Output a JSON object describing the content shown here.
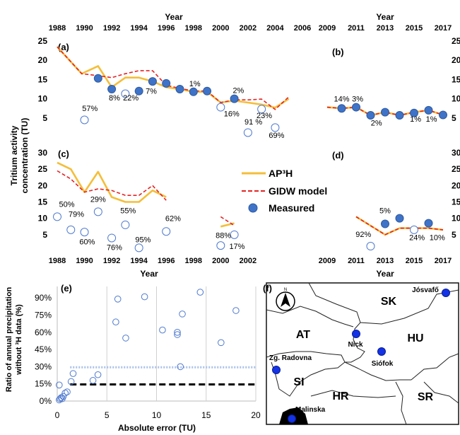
{
  "colors": {
    "ap3h": "#F4BE3A",
    "gidw": "#E52222",
    "measured_fill": "#3E73C8",
    "measured_stroke": "#2F5A9E",
    "open_marker": "#4F7ACF",
    "dotted_line": "#A9C1EA",
    "dashed_line": "#000000",
    "map_marker": "#1432E6"
  },
  "top_axis": {
    "title": "Year",
    "left_ticks": [
      "1988",
      "1990",
      "1992",
      "1994",
      "1996",
      "1998",
      "2000",
      "2002",
      "2004",
      "2006"
    ],
    "right_ticks": [
      "2009",
      "2011",
      "2013",
      "2015",
      "2017"
    ]
  },
  "bottom_axis": {
    "title": "Year",
    "left_ticks": [
      "1988",
      "1990",
      "1992",
      "1994",
      "1996",
      "1998",
      "2000",
      "2002"
    ],
    "right_ticks": [
      "2009",
      "2011",
      "2013",
      "2015",
      "2017"
    ]
  },
  "y_axis_title_lines": [
    "Tritium activity",
    "concentration (TU)"
  ],
  "legend": {
    "ap3h": "AP³H",
    "gidw": "GIDW model",
    "measured": "Measured"
  },
  "chart_data": [
    {
      "panel": "(a)",
      "type": "line",
      "xlim": [
        1988,
        2006
      ],
      "ylim": [
        0,
        25
      ],
      "yticks": [
        "5",
        "10",
        "15",
        "20",
        "25"
      ],
      "series": [
        {
          "name": "AP³H",
          "x": [
            1988,
            1989.8,
            1991,
            1992,
            1993,
            1994,
            1995,
            1996,
            1997,
            1998,
            1999,
            2000,
            2001,
            2002,
            2003,
            2004,
            2005
          ],
          "y": [
            23.5,
            16.5,
            18.5,
            13,
            15.5,
            15.5,
            14.5,
            13,
            12.5,
            11.8,
            11.8,
            9,
            9.5,
            9,
            8.5,
            7.7,
            10
          ]
        },
        {
          "name": "GIDW model",
          "x": [
            1988,
            1989.8,
            1991,
            1992,
            1993,
            1994,
            1995,
            1996,
            1997,
            1998,
            1999,
            2000,
            2001,
            2002,
            2003,
            2004,
            2005
          ],
          "y": [
            23.5,
            16.5,
            16,
            15.5,
            16.5,
            17.3,
            17.3,
            13.5,
            12.7,
            12,
            12,
            9,
            9.7,
            9.7,
            9.9,
            7.2,
            10.5
          ]
        }
      ],
      "measured_filled": [
        {
          "x": 1991,
          "y": 15.3
        },
        {
          "x": 1992,
          "y": 12.5
        },
        {
          "x": 1994,
          "y": 12
        },
        {
          "x": 1995,
          "y": 14.5
        },
        {
          "x": 1996,
          "y": 14
        },
        {
          "x": 1997,
          "y": 12.5
        },
        {
          "x": 1998,
          "y": 11.8
        },
        {
          "x": 1999,
          "y": 12
        },
        {
          "x": 2001,
          "y": 10
        }
      ],
      "measured_open": [
        {
          "x": 1990,
          "y": 4.5
        },
        {
          "x": 1993,
          "y": 11.3
        },
        {
          "x": 2000,
          "y": 7.8
        },
        {
          "x": 2003,
          "y": 7.3
        },
        {
          "x": 2002,
          "y": 1.2
        },
        {
          "x": 2004,
          "y": 2.5
        }
      ],
      "annotations": [
        {
          "text": "57%",
          "x": 1990.4,
          "y": 6.8
        },
        {
          "text": "8%",
          "x": 1992.2,
          "y": 9.6
        },
        {
          "text": "22%",
          "x": 1993.4,
          "y": 9.6
        },
        {
          "text": "7%",
          "x": 1994.9,
          "y": 11.3
        },
        {
          "text": "1%",
          "x": 1998.1,
          "y": 13.2
        },
        {
          "text": "2%",
          "x": 2001.3,
          "y": 11.5
        },
        {
          "text": "16%",
          "x": 2000.8,
          "y": 5.4
        },
        {
          "text": "91 %",
          "x": 2002.4,
          "y": 3.3
        },
        {
          "text": "23%",
          "x": 2003.2,
          "y": 5.0
        },
        {
          "text": "69%",
          "x": 2004.1,
          "y": -0.2
        }
      ]
    },
    {
      "panel": "(b)",
      "type": "line",
      "xlim": [
        2009,
        2017
      ],
      "ylim": [
        0,
        25
      ],
      "yticks": [
        "5",
        "10",
        "15",
        "20",
        "25"
      ],
      "series": [
        {
          "name": "AP³H",
          "x": [
            2009,
            2010,
            2011,
            2012,
            2013,
            2014,
            2015,
            2016,
            2017
          ],
          "y": [
            7.8,
            7.5,
            7.8,
            5.7,
            6.5,
            5.7,
            6.5,
            7,
            5.8
          ]
        },
        {
          "name": "GIDW model",
          "x": [
            2009,
            2010,
            2011,
            2012,
            2013,
            2014,
            2015,
            2016,
            2017
          ],
          "y": [
            7.8,
            7.5,
            7.8,
            5.7,
            6.5,
            5.7,
            6.5,
            7,
            5.8
          ]
        }
      ],
      "measured_filled": [
        {
          "x": 2010,
          "y": 7.5
        },
        {
          "x": 2011,
          "y": 7.8
        },
        {
          "x": 2012,
          "y": 5.7
        },
        {
          "x": 2013,
          "y": 6.5
        },
        {
          "x": 2014,
          "y": 5.7
        },
        {
          "x": 2015,
          "y": 6.3
        },
        {
          "x": 2016,
          "y": 7
        },
        {
          "x": 2017,
          "y": 5.8
        }
      ],
      "measured_open": [],
      "annotations": [
        {
          "text": "14%",
          "x": 2010,
          "y": 9.3
        },
        {
          "text": "3%",
          "x": 2011.1,
          "y": 9.3
        },
        {
          "text": "2%",
          "x": 2012.4,
          "y": 3.0
        },
        {
          "text": "1%",
          "x": 2015.1,
          "y": 4.0
        },
        {
          "text": "1%",
          "x": 2016.2,
          "y": 4.0
        }
      ]
    },
    {
      "panel": "(c)",
      "type": "line",
      "xlim": [
        1988,
        2006
      ],
      "ylim": [
        0,
        30
      ],
      "yticks": [
        "5",
        "10",
        "15",
        "20",
        "25",
        "30"
      ],
      "series": [
        {
          "name": "AP³H",
          "x": [
            1988,
            1989,
            1990,
            1991,
            1992,
            1993,
            1994,
            1995,
            1996
          ],
          "y": [
            27,
            25,
            18,
            24.2,
            16.5,
            15,
            15,
            18.5,
            16.5
          ]
        },
        {
          "name": "GIDW model",
          "x": [
            1988,
            1989,
            1990,
            1991,
            1992,
            1993,
            1994,
            1995,
            1996
          ],
          "y": [
            24.5,
            22,
            18,
            19,
            18.5,
            17,
            17,
            20,
            15.5
          ]
        },
        {
          "name": "AP³H",
          "x": [
            2000,
            2001
          ],
          "y": [
            7.5,
            8.5
          ]
        },
        {
          "name": "GIDW model",
          "x": [
            2000,
            2001
          ],
          "y": [
            10.5,
            7.8
          ]
        }
      ],
      "measured_filled": [],
      "measured_open": [
        {
          "x": 1988,
          "y": 10.5
        },
        {
          "x": 1989,
          "y": 6.5
        },
        {
          "x": 1990,
          "y": 5.8
        },
        {
          "x": 1991,
          "y": 12
        },
        {
          "x": 1992,
          "y": 4
        },
        {
          "x": 1993,
          "y": 8
        },
        {
          "x": 1994,
          "y": 1
        },
        {
          "x": 1996,
          "y": 6
        },
        {
          "x": 2000,
          "y": 1.7
        },
        {
          "x": 2001,
          "y": 5
        }
      ],
      "annotations": [
        {
          "text": "50%",
          "x": 1988.7,
          "y": 13.5
        },
        {
          "text": "79%",
          "x": 1989.4,
          "y": 10.5
        },
        {
          "text": "29%",
          "x": 1991,
          "y": 15
        },
        {
          "text": "55%",
          "x": 1993.2,
          "y": 11.5
        },
        {
          "text": "62%",
          "x": 1996.5,
          "y": 9.2
        },
        {
          "text": "60%",
          "x": 1990.2,
          "y": 2.0
        },
        {
          "text": "76%",
          "x": 1992.2,
          "y": 0.3
        },
        {
          "text": "95%",
          "x": 1994.3,
          "y": 2.7
        },
        {
          "text": "88%",
          "x": 2000.2,
          "y": 4.0
        },
        {
          "text": "17%",
          "x": 2001.2,
          "y": 0.6
        }
      ]
    },
    {
      "panel": "(d)",
      "type": "line",
      "xlim": [
        2009,
        2017
      ],
      "ylim": [
        0,
        30
      ],
      "yticks": [
        "5",
        "10",
        "15",
        "20",
        "25",
        "30"
      ],
      "series": [
        {
          "name": "AP³H",
          "x": [
            2011,
            2013,
            2014,
            2015,
            2016,
            2017
          ],
          "y": [
            10.5,
            5,
            7,
            7,
            7,
            6.5
          ]
        },
        {
          "name": "GIDW model",
          "x": [
            2011,
            2013,
            2014,
            2015,
            2016,
            2017
          ],
          "y": [
            10.5,
            5,
            7,
            7,
            7,
            6.5
          ]
        }
      ],
      "measured_filled": [
        {
          "x": 2013,
          "y": 8.3
        },
        {
          "x": 2014,
          "y": 10
        },
        {
          "x": 2016,
          "y": 8.5
        }
      ],
      "measured_open": [
        {
          "x": 2012,
          "y": 1.5
        },
        {
          "x": 2015,
          "y": 6.5
        }
      ],
      "annotations": [
        {
          "text": "5%",
          "x": 2013,
          "y": 11.5
        },
        {
          "text": "92%",
          "x": 2011.5,
          "y": 4.3
        },
        {
          "text": "24%",
          "x": 2015.2,
          "y": 3.3
        },
        {
          "text": "10%",
          "x": 2016.6,
          "y": 3.3
        }
      ]
    },
    {
      "panel": "(e)",
      "type": "scatter",
      "xlabel": "Absolute error  (TU)",
      "ylabel_lines": [
        "Ratio of annual precipitation",
        "without ³H data (%)"
      ],
      "xlim": [
        0,
        20
      ],
      "ylim": [
        0,
        100
      ],
      "xticks": [
        "0",
        "5",
        "10",
        "15",
        "20"
      ],
      "yticks": [
        "0%",
        "15%",
        "30%",
        "45%",
        "60%",
        "75%",
        "90%"
      ],
      "ytick_values": [
        0,
        15,
        30,
        45,
        60,
        75,
        90
      ],
      "points": [
        {
          "x": 0.2,
          "y": 1
        },
        {
          "x": 0.3,
          "y": 2
        },
        {
          "x": 0.5,
          "y": 2
        },
        {
          "x": 0.4,
          "y": 3
        },
        {
          "x": 0.6,
          "y": 4
        },
        {
          "x": 0.8,
          "y": 7
        },
        {
          "x": 1.0,
          "y": 8
        },
        {
          "x": 0.2,
          "y": 14
        },
        {
          "x": 1.4,
          "y": 17
        },
        {
          "x": 1.6,
          "y": 24
        },
        {
          "x": 3.6,
          "y": 18
        },
        {
          "x": 4.1,
          "y": 23
        },
        {
          "x": 5.9,
          "y": 69
        },
        {
          "x": 6.1,
          "y": 89
        },
        {
          "x": 6.9,
          "y": 55
        },
        {
          "x": 8.8,
          "y": 91
        },
        {
          "x": 10.6,
          "y": 62
        },
        {
          "x": 12.1,
          "y": 60
        },
        {
          "x": 12.1,
          "y": 58
        },
        {
          "x": 12.6,
          "y": 76
        },
        {
          "x": 12.4,
          "y": 30
        },
        {
          "x": 14.4,
          "y": 95
        },
        {
          "x": 16.5,
          "y": 51
        },
        {
          "x": 18.0,
          "y": 79
        }
      ],
      "dotted_level": 29.5,
      "dotted_x": [
        1.3,
        20
      ],
      "dashed_level": 14.5,
      "dashed_x": [
        1.3,
        20
      ]
    }
  ],
  "map": {
    "panel": "(f)",
    "north": "N",
    "countries": [
      "SK",
      "AT",
      "HU",
      "SI",
      "HR",
      "SR"
    ],
    "stations": [
      "Jósvafő",
      "Nick",
      "Siófok",
      "Zg. Radovna",
      "Malinska"
    ]
  }
}
